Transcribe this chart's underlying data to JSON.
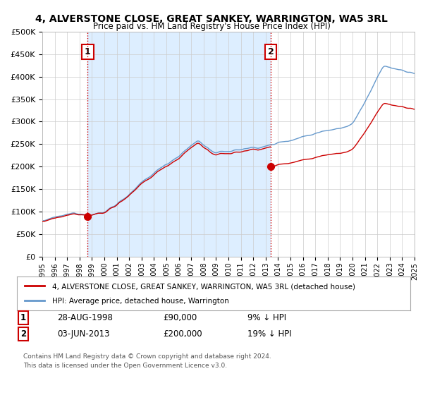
{
  "title": "4, ALVERSTONE CLOSE, GREAT SANKEY, WARRINGTON, WA5 3RL",
  "subtitle": "Price paid vs. HM Land Registry's House Price Index (HPI)",
  "legend_label_red": "4, ALVERSTONE CLOSE, GREAT SANKEY, WARRINGTON, WA5 3RL (detached house)",
  "legend_label_blue": "HPI: Average price, detached house, Warrington",
  "annotation1_label": "1",
  "annotation1_date": "28-AUG-1998",
  "annotation1_price": "£90,000",
  "annotation1_hpi": "9% ↓ HPI",
  "annotation2_label": "2",
  "annotation2_date": "03-JUN-2013",
  "annotation2_price": "£200,000",
  "annotation2_hpi": "19% ↓ HPI",
  "footnote": "Contains HM Land Registry data © Crown copyright and database right 2024.\nThis data is licensed under the Open Government Licence v3.0.",
  "sale1_year": 1998.66,
  "sale1_price": 90000,
  "sale2_year": 2013.42,
  "sale2_price": 200000,
  "ylim": [
    0,
    500000
  ],
  "xlim_start": 1995,
  "xlim_end": 2025,
  "red_color": "#cc0000",
  "blue_color": "#6699cc",
  "vline_color": "#cc0000",
  "shade_color": "#ddeeff",
  "background_color": "#ffffff",
  "grid_color": "#cccccc",
  "title_fontsize": 10,
  "subtitle_fontsize": 9
}
